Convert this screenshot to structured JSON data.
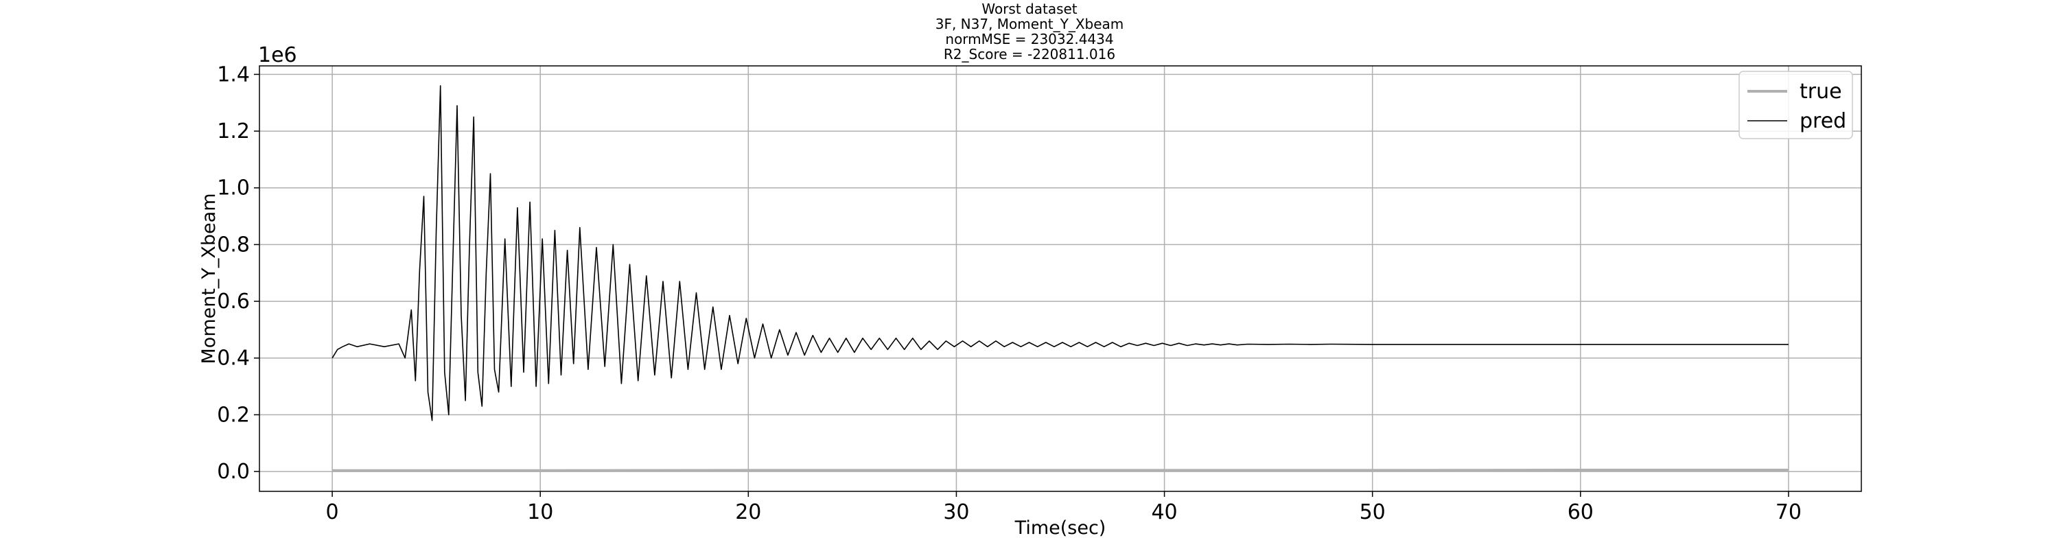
{
  "chart_data": {
    "type": "line",
    "title_lines": [
      "Worst dataset",
      "3F, N37, Moment_Y_Xbeam",
      "normMSE = 23032.4434",
      "R2_Score = -220811.016"
    ],
    "xlabel": "Time(sec)",
    "ylabel": "Moment_Y_Xbeam",
    "y_offset_label": "1e6",
    "xlim": [
      -3.5,
      73.5
    ],
    "ylim": [
      -0.07,
      1.43
    ],
    "y_scale": 1000000,
    "x_ticks": [
      0,
      10,
      20,
      30,
      40,
      50,
      60,
      70
    ],
    "x_tick_labels": [
      "0",
      "10",
      "20",
      "30",
      "40",
      "50",
      "60",
      "70"
    ],
    "y_ticks": [
      0.0,
      0.2,
      0.4,
      0.6,
      0.8,
      1.0,
      1.2,
      1.4
    ],
    "y_tick_labels": [
      "0.0",
      "0.2",
      "0.4",
      "0.6",
      "0.8",
      "1.0",
      "1.2",
      "1.4"
    ],
    "grid": true,
    "legend_position": "top-right",
    "series": [
      {
        "name": "true",
        "color": "#b0b0b0",
        "x": [
          0,
          10,
          20,
          30,
          40,
          50,
          60,
          70
        ],
        "y": [
          0.003,
          0.003,
          0.004,
          0.004,
          0.004,
          0.004,
          0.005,
          0.005
        ]
      },
      {
        "name": "pred",
        "color": "#000000",
        "x": [
          0,
          0.25,
          0.5,
          0.8,
          1.2,
          1.8,
          2.5,
          3.2,
          3.5,
          3.8,
          4.0,
          4.2,
          4.4,
          4.6,
          4.8,
          5.0,
          5.2,
          5.4,
          5.6,
          5.8,
          6.0,
          6.2,
          6.4,
          6.6,
          6.8,
          7.0,
          7.2,
          7.4,
          7.6,
          7.8,
          8.0,
          8.3,
          8.6,
          8.9,
          9.2,
          9.5,
          9.8,
          10.1,
          10.4,
          10.7,
          11.0,
          11.3,
          11.6,
          11.9,
          12.3,
          12.7,
          13.1,
          13.5,
          13.9,
          14.3,
          14.7,
          15.1,
          15.5,
          15.9,
          16.3,
          16.7,
          17.1,
          17.5,
          17.9,
          18.3,
          18.7,
          19.1,
          19.5,
          19.9,
          20.3,
          20.7,
          21.1,
          21.5,
          21.9,
          22.3,
          22.7,
          23.1,
          23.5,
          23.9,
          24.3,
          24.7,
          25.1,
          25.5,
          25.9,
          26.3,
          26.7,
          27.1,
          27.5,
          27.9,
          28.3,
          28.7,
          29.1,
          29.5,
          29.9,
          30.3,
          30.7,
          31.1,
          31.5,
          31.9,
          32.3,
          32.7,
          33.1,
          33.5,
          33.9,
          34.3,
          34.7,
          35.1,
          35.5,
          35.9,
          36.3,
          36.7,
          37.1,
          37.5,
          37.9,
          38.3,
          38.7,
          39.1,
          39.5,
          39.9,
          40.3,
          40.7,
          41.1,
          41.5,
          41.9,
          42.3,
          42.7,
          43.1,
          43.5,
          44.0,
          45.0,
          46.0,
          47.0,
          48.0,
          50.0,
          55.0,
          60.0,
          65.0,
          70.0
        ],
        "y": [
          0.4,
          0.43,
          0.44,
          0.45,
          0.44,
          0.45,
          0.44,
          0.45,
          0.4,
          0.57,
          0.32,
          0.71,
          0.97,
          0.28,
          0.18,
          0.85,
          1.36,
          0.35,
          0.2,
          0.75,
          1.29,
          0.55,
          0.25,
          0.8,
          1.25,
          0.35,
          0.23,
          0.7,
          1.05,
          0.36,
          0.28,
          0.82,
          0.3,
          0.93,
          0.35,
          0.95,
          0.3,
          0.82,
          0.31,
          0.85,
          0.34,
          0.78,
          0.38,
          0.86,
          0.36,
          0.79,
          0.37,
          0.8,
          0.31,
          0.73,
          0.32,
          0.69,
          0.34,
          0.67,
          0.33,
          0.67,
          0.36,
          0.63,
          0.36,
          0.58,
          0.36,
          0.55,
          0.38,
          0.54,
          0.4,
          0.52,
          0.4,
          0.5,
          0.41,
          0.49,
          0.41,
          0.48,
          0.42,
          0.47,
          0.42,
          0.47,
          0.42,
          0.47,
          0.43,
          0.47,
          0.43,
          0.47,
          0.43,
          0.47,
          0.43,
          0.46,
          0.43,
          0.46,
          0.44,
          0.46,
          0.44,
          0.46,
          0.44,
          0.46,
          0.44,
          0.455,
          0.44,
          0.455,
          0.44,
          0.455,
          0.44,
          0.455,
          0.44,
          0.455,
          0.44,
          0.455,
          0.44,
          0.455,
          0.44,
          0.452,
          0.444,
          0.452,
          0.444,
          0.452,
          0.444,
          0.452,
          0.444,
          0.45,
          0.446,
          0.45,
          0.446,
          0.45,
          0.446,
          0.449,
          0.448,
          0.449,
          0.448,
          0.449,
          0.448,
          0.448,
          0.448,
          0.448,
          0.448
        ]
      }
    ]
  }
}
